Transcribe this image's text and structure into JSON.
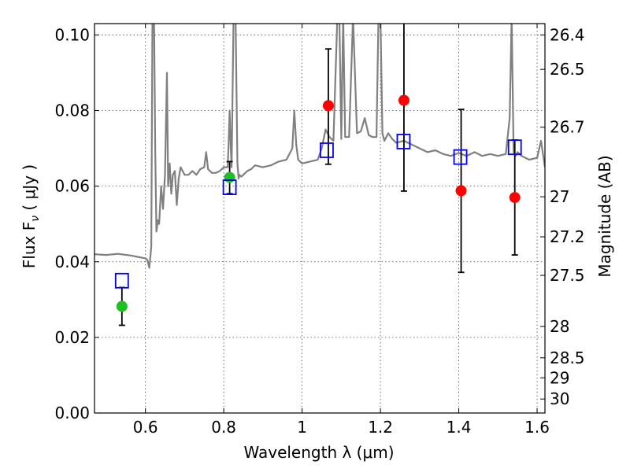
{
  "chart_data": {
    "type": "scatter",
    "xlabel": "Wavelength  λ (μm)",
    "ylabel": "Flux  F",
    "ylabel_sub": "ν",
    "ylabel_unit": " ( μJy )",
    "y2label": "Magnitude (AB)",
    "xlim": [
      0.47,
      1.62
    ],
    "ylim": [
      0.0,
      0.103
    ],
    "grid": true,
    "x_ticks": [
      {
        "v": 0.6,
        "label": "0.6"
      },
      {
        "v": 0.8,
        "label": "0.8"
      },
      {
        "v": 1.0,
        "label": "1"
      },
      {
        "v": 1.2,
        "label": "1.2"
      },
      {
        "v": 1.4,
        "label": "1.4"
      },
      {
        "v": 1.6,
        "label": "1.6"
      }
    ],
    "y_ticks": [
      {
        "v": 0.0,
        "label": "0.00"
      },
      {
        "v": 0.02,
        "label": "0.02"
      },
      {
        "v": 0.04,
        "label": "0.04"
      },
      {
        "v": 0.06,
        "label": "0.06"
      },
      {
        "v": 0.08,
        "label": "0.08"
      },
      {
        "v": 0.1,
        "label": "0.10"
      }
    ],
    "mag_ticks": [
      {
        "v": 0.1,
        "label": "26.4"
      },
      {
        "v": 0.0909,
        "label": "26.5"
      },
      {
        "v": 0.0756,
        "label": "26.7"
      },
      {
        "v": 0.0572,
        "label": "27"
      },
      {
        "v": 0.0466,
        "label": "27.2"
      },
      {
        "v": 0.0364,
        "label": "27.5"
      },
      {
        "v": 0.0229,
        "label": "28"
      },
      {
        "v": 0.0146,
        "label": "28.5"
      },
      {
        "v": 0.0093,
        "label": "29"
      },
      {
        "v": 0.0037,
        "label": "30"
      }
    ],
    "model_spectrum": {
      "name": "model spectrum",
      "color": "#808080",
      "x": [
        0.47,
        0.5,
        0.53,
        0.56,
        0.58,
        0.6,
        0.605,
        0.61,
        0.615,
        0.618,
        0.622,
        0.625,
        0.628,
        0.632,
        0.635,
        0.64,
        0.645,
        0.65,
        0.655,
        0.658,
        0.662,
        0.666,
        0.67,
        0.675,
        0.68,
        0.685,
        0.69,
        0.7,
        0.71,
        0.72,
        0.73,
        0.74,
        0.75,
        0.755,
        0.76,
        0.77,
        0.78,
        0.79,
        0.8,
        0.81,
        0.812,
        0.815,
        0.818,
        0.82,
        0.825,
        0.83,
        0.835,
        0.838,
        0.84,
        0.845,
        0.85,
        0.86,
        0.87,
        0.88,
        0.9,
        0.92,
        0.94,
        0.96,
        0.975,
        0.98,
        0.985,
        0.99,
        1.0,
        1.02,
        1.04,
        1.05,
        1.06,
        1.07,
        1.08,
        1.09,
        1.095,
        1.1,
        1.105,
        1.11,
        1.12,
        1.13,
        1.14,
        1.15,
        1.16,
        1.17,
        1.18,
        1.19,
        1.195,
        1.2,
        1.205,
        1.21,
        1.22,
        1.23,
        1.24,
        1.26,
        1.28,
        1.3,
        1.32,
        1.34,
        1.36,
        1.38,
        1.4,
        1.42,
        1.44,
        1.46,
        1.48,
        1.5,
        1.52,
        1.53,
        1.535,
        1.54,
        1.545,
        1.55,
        1.56,
        1.58,
        1.6,
        1.61,
        1.62
      ],
      "y": [
        0.042,
        0.0418,
        0.0421,
        0.0417,
        0.0413,
        0.0409,
        0.0405,
        0.0384,
        0.044,
        0.105,
        0.105,
        0.07,
        0.048,
        0.051,
        0.05,
        0.06,
        0.054,
        0.063,
        0.09,
        0.06,
        0.066,
        0.058,
        0.063,
        0.064,
        0.055,
        0.062,
        0.065,
        0.063,
        0.063,
        0.064,
        0.063,
        0.0645,
        0.065,
        0.069,
        0.0645,
        0.0635,
        0.0635,
        0.064,
        0.065,
        0.065,
        0.07,
        0.08,
        0.07,
        0.065,
        0.105,
        0.105,
        0.066,
        0.062,
        0.063,
        0.0625,
        0.063,
        0.064,
        0.0645,
        0.0655,
        0.065,
        0.0655,
        0.0665,
        0.067,
        0.07,
        0.08,
        0.071,
        0.067,
        0.066,
        0.0665,
        0.067,
        0.07,
        0.075,
        0.073,
        0.072,
        0.105,
        0.105,
        0.0725,
        0.105,
        0.073,
        0.073,
        0.105,
        0.074,
        0.0745,
        0.078,
        0.0735,
        0.073,
        0.073,
        0.105,
        0.105,
        0.074,
        0.072,
        0.074,
        0.0725,
        0.0715,
        0.072,
        0.071,
        0.07,
        0.069,
        0.0695,
        0.0685,
        0.068,
        0.0688,
        0.068,
        0.069,
        0.068,
        0.0685,
        0.068,
        0.0685,
        0.078,
        0.105,
        0.069,
        0.068,
        0.069,
        0.068,
        0.067,
        0.0675,
        0.072,
        0.065
      ]
    },
    "series": [
      {
        "name": "observed (green)",
        "marker": "circle",
        "color": "#1fbf1f",
        "points": [
          {
            "x": 0.54,
            "y": 0.0282,
            "err_lo": 0.0232,
            "err_hi": 0.0332
          },
          {
            "x": 0.815,
            "y": 0.0623,
            "err_lo": 0.058,
            "err_hi": 0.0665
          }
        ]
      },
      {
        "name": "observed (red)",
        "marker": "circle",
        "color": "#ff0000",
        "points": [
          {
            "x": 1.067,
            "y": 0.0813,
            "err_lo": 0.0658,
            "err_hi": 0.0963
          },
          {
            "x": 1.26,
            "y": 0.0827,
            "err_lo": 0.0587,
            "err_hi": 0.105
          },
          {
            "x": 1.406,
            "y": 0.0588,
            "err_lo": 0.0372,
            "err_hi": 0.0803
          },
          {
            "x": 1.543,
            "y": 0.057,
            "err_lo": 0.0418,
            "err_hi": 0.0722
          }
        ]
      },
      {
        "name": "model photometry",
        "marker": "square",
        "color": "#0000ff",
        "points": [
          {
            "x": 0.54,
            "y": 0.035
          },
          {
            "x": 0.815,
            "y": 0.0597
          },
          {
            "x": 1.063,
            "y": 0.0695
          },
          {
            "x": 1.259,
            "y": 0.0718
          },
          {
            "x": 1.404,
            "y": 0.0677
          },
          {
            "x": 1.543,
            "y": 0.0703
          }
        ]
      }
    ]
  }
}
